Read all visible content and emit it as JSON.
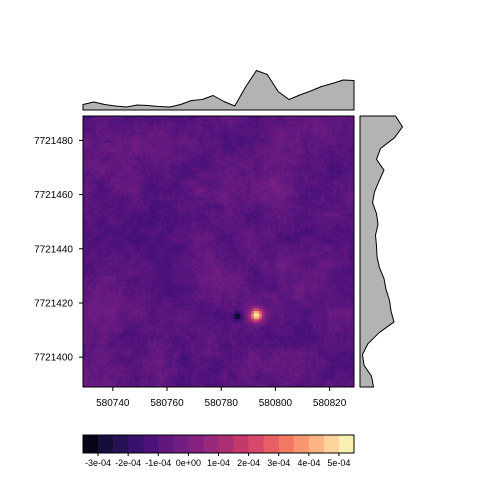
{
  "chart_data": {
    "type": "heatmap",
    "title": "",
    "xlabel": "",
    "ylabel": "",
    "xlim": [
      580729,
      580829
    ],
    "ylim": [
      7721389,
      7721489
    ],
    "x_ticks": [
      580740,
      580760,
      580780,
      580800,
      580820
    ],
    "x_tick_labels": [
      "580740",
      "580760",
      "580780",
      "580800",
      "580820"
    ],
    "y_ticks": [
      7721400,
      7721420,
      7721440,
      7721460,
      7721480
    ],
    "y_tick_labels": [
      "7721400",
      "7721420",
      "7721440",
      "7721460",
      "7721480"
    ],
    "value_range": [
      -0.00035,
      0.00055
    ],
    "colorbar": {
      "breaks": [
        -0.00035,
        -0.0003,
        -0.00025,
        -0.0002,
        -0.00015,
        -0.0001,
        -5e-05,
        0,
        5e-05,
        0.0001,
        0.00015,
        0.0002,
        0.00025,
        0.0003,
        0.00035,
        0.0004,
        0.00045,
        0.0005,
        0.00055
      ],
      "tick_values": [
        -0.0003,
        -0.0002,
        -0.0001,
        0,
        0.0001,
        0.0002,
        0.0003,
        0.0004,
        0.0005
      ],
      "tick_labels": [
        "-3e-04",
        "-2e-04",
        "-1e-04",
        "0e+00",
        "1e-04",
        "2e-04",
        "3e-04",
        "4e-04",
        "5e-04"
      ],
      "colors": [
        "#000004",
        "#0d0829",
        "#1c1046",
        "#2c1161",
        "#3f0f72",
        "#51127c",
        "#63197f",
        "#741e81",
        "#86217f",
        "#99287c",
        "#ad2e73",
        "#c3376a",
        "#d6456c",
        "#e45a63",
        "#ef7262",
        "#f68f6b",
        "#fbaa79",
        "#fdc791",
        "#fce3a8",
        "#fcfdbf"
      ]
    },
    "grid": false,
    "legend": "colorbar-bottom",
    "features": [
      {
        "kind": "positive-anomaly",
        "x": 580793,
        "y": 7721415.5,
        "peak_value": 0.0005
      },
      {
        "kind": "negative-anomaly",
        "x": 580786,
        "y": 7721415,
        "peak_value": -0.00032
      }
    ],
    "x_profile": {
      "x": [
        580729,
        580733,
        580737,
        580741,
        580745,
        580749,
        580753,
        580757,
        580761,
        580765,
        580769,
        580773,
        580777,
        580781,
        580785,
        580789,
        580793,
        580797,
        580801,
        580805,
        580809,
        580813,
        580817,
        580821,
        580825,
        580829
      ],
      "values": [
        0.11,
        0.16,
        0.11,
        0.08,
        0.06,
        0.1,
        0.09,
        0.07,
        0.06,
        0.11,
        0.19,
        0.21,
        0.29,
        0.17,
        0.08,
        0.46,
        0.79,
        0.71,
        0.37,
        0.21,
        0.3,
        0.38,
        0.47,
        0.53,
        0.6,
        0.59
      ]
    },
    "y_profile": {
      "y": [
        7721389,
        7721393,
        7721397,
        7721401,
        7721405,
        7721409,
        7721413,
        7721417,
        7721421,
        7721425,
        7721429,
        7721433,
        7721437,
        7721441,
        7721445,
        7721449,
        7721453,
        7721457,
        7721461,
        7721465,
        7721469,
        7721473,
        7721477,
        7721481,
        7721485,
        7721489
      ],
      "values": [
        0.27,
        0.23,
        0.08,
        0.05,
        0.16,
        0.38,
        0.68,
        0.62,
        0.59,
        0.52,
        0.48,
        0.39,
        0.34,
        0.33,
        0.31,
        0.36,
        0.33,
        0.25,
        0.29,
        0.38,
        0.48,
        0.33,
        0.41,
        0.69,
        0.85,
        0.71
      ]
    }
  }
}
